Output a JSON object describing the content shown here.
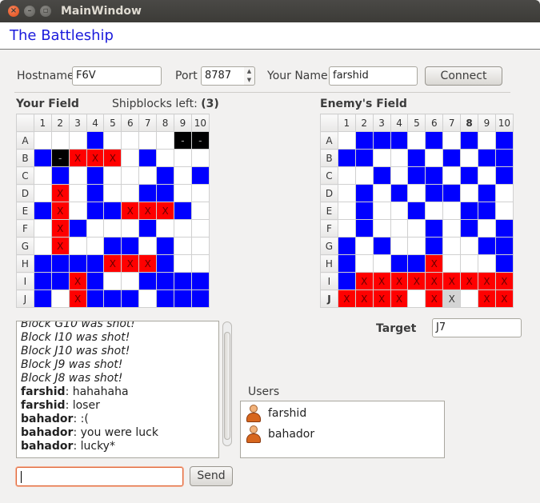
{
  "window": {
    "title": "MainWindow"
  },
  "app": {
    "title": "The Battleship"
  },
  "connection": {
    "hostname_label": "Hostname",
    "hostname_value": "F6V",
    "port_label": "Port",
    "port_value": "8787",
    "name_label": "Your Name",
    "name_value": "farshid",
    "connect_label": "Connect"
  },
  "your_field": {
    "title": "Your Field",
    "shipblocks_label": "Shipblocks left:",
    "shipblocks_value": "(3)",
    "columns": [
      "1",
      "2",
      "3",
      "4",
      "5",
      "6",
      "7",
      "8",
      "9",
      "10"
    ],
    "rows": [
      {
        "label": "A",
        "cells": [
          "",
          "",
          "",
          "b",
          "",
          "",
          "",
          "",
          "k",
          "k"
        ]
      },
      {
        "label": "B",
        "cells": [
          "b",
          "k",
          "r",
          "r",
          "r",
          "",
          "b",
          "",
          "",
          ""
        ]
      },
      {
        "label": "C",
        "cells": [
          "",
          "b",
          "",
          "b",
          "",
          "",
          "",
          "b",
          "",
          "b"
        ]
      },
      {
        "label": "D",
        "cells": [
          "",
          "r",
          "",
          "b",
          "",
          "",
          "b",
          "b",
          "",
          ""
        ]
      },
      {
        "label": "E",
        "cells": [
          "b",
          "r",
          "",
          "b",
          "b",
          "r",
          "r",
          "r",
          "b",
          ""
        ]
      },
      {
        "label": "F",
        "cells": [
          "",
          "r",
          "b",
          "",
          "",
          "",
          "b",
          "",
          "",
          ""
        ]
      },
      {
        "label": "G",
        "cells": [
          "",
          "r",
          "",
          "",
          "b",
          "b",
          "",
          "b",
          "",
          ""
        ]
      },
      {
        "label": "H",
        "cells": [
          "b",
          "b",
          "b",
          "b",
          "r",
          "r",
          "r",
          "b",
          "",
          ""
        ]
      },
      {
        "label": "I",
        "cells": [
          "b",
          "b",
          "r",
          "b",
          "",
          "",
          "b",
          "b",
          "b",
          "b"
        ]
      },
      {
        "label": "J",
        "cells": [
          "b",
          "",
          "r",
          "b",
          "b",
          "b",
          "",
          "b",
          "b",
          "b"
        ]
      }
    ],
    "marks": {
      "r": "X",
      "k": "-",
      "b": "",
      "": "",
      "g": "X"
    }
  },
  "enemy_field": {
    "title": "Enemy's Field",
    "columns": [
      "1",
      "2",
      "3",
      "4",
      "5",
      "6",
      "7",
      "8",
      "9",
      "10"
    ],
    "rows": [
      {
        "label": "A",
        "cells": [
          "",
          "b",
          "b",
          "b",
          "",
          "b",
          "",
          "b",
          "",
          "b"
        ]
      },
      {
        "label": "B",
        "cells": [
          "b",
          "b",
          "",
          "",
          "b",
          "",
          "b",
          "",
          "b",
          "b"
        ]
      },
      {
        "label": "C",
        "cells": [
          "",
          "",
          "b",
          "",
          "b",
          "b",
          "",
          "b",
          "",
          "b"
        ]
      },
      {
        "label": "D",
        "cells": [
          "",
          "b",
          "",
          "b",
          "",
          "b",
          "b",
          "",
          "b",
          ""
        ]
      },
      {
        "label": "E",
        "cells": [
          "",
          "b",
          "",
          "",
          "b",
          "",
          "",
          "b",
          "b",
          ""
        ]
      },
      {
        "label": "F",
        "cells": [
          "",
          "b",
          "",
          "",
          "",
          "b",
          "",
          "b",
          "",
          "b"
        ]
      },
      {
        "label": "G",
        "cells": [
          "b",
          "",
          "b",
          "",
          "",
          "b",
          "",
          "",
          "b",
          "b"
        ]
      },
      {
        "label": "H",
        "cells": [
          "b",
          "",
          "",
          "b",
          "b",
          "r",
          "",
          "",
          "",
          "b"
        ]
      },
      {
        "label": "I",
        "cells": [
          "b",
          "r",
          "r",
          "r",
          "r",
          "r",
          "r",
          "r",
          "r",
          "r"
        ]
      },
      {
        "label": "J",
        "cells": [
          "r",
          "r",
          "r",
          "r",
          "",
          "r",
          "g",
          "",
          "r",
          "r"
        ]
      }
    ],
    "target_label": "Target",
    "target_value": "J7"
  },
  "chat": {
    "lines": [
      {
        "type": "system",
        "text": "Block G10 was shot!"
      },
      {
        "type": "system",
        "text": "Block I10 was shot!"
      },
      {
        "type": "system",
        "text": "Block J10 was shot!"
      },
      {
        "type": "system",
        "text": "Block J9 was shot!"
      },
      {
        "type": "system",
        "text": "Block J8 was shot!"
      },
      {
        "type": "msg",
        "user": "farshid",
        "text": ": hahahaha"
      },
      {
        "type": "msg",
        "user": "farshid",
        "text": ": loser"
      },
      {
        "type": "msg",
        "user": "bahador",
        "text": ": :("
      },
      {
        "type": "msg",
        "user": "bahador",
        "text": ": you were luck"
      },
      {
        "type": "msg",
        "user": "bahador",
        "text": ": lucky*"
      }
    ],
    "send_label": "Send"
  },
  "users": {
    "label": "Users",
    "list": [
      "farshid",
      "bahador"
    ]
  },
  "colors": {
    "ship": "#0000ff",
    "hit": "#ff0000",
    "title": "#1a1adc"
  }
}
